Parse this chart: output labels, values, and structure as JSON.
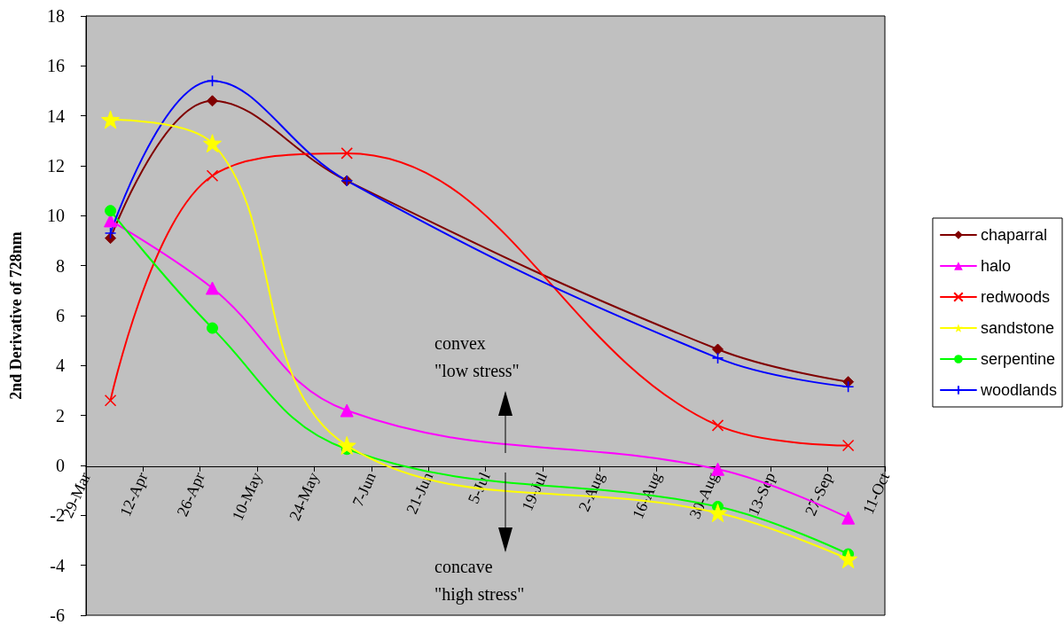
{
  "chart_data": {
    "type": "line",
    "ylabel": "2nd Derivative of 728nm",
    "x": [
      "--04-04",
      "--04-29",
      "--06-01",
      "--08-31",
      "--10-02"
    ],
    "series": [
      {
        "name": "chaparral",
        "color": "#800000",
        "marker": "diamond",
        "values": [
          9.1,
          14.6,
          11.4,
          4.65,
          3.35
        ]
      },
      {
        "name": "halo",
        "color": "#ff00ff",
        "marker": "triangle",
        "values": [
          9.8,
          7.1,
          2.2,
          -0.15,
          -2.1
        ]
      },
      {
        "name": "redwoods",
        "color": "#ff0000",
        "marker": "x",
        "values": [
          2.6,
          11.6,
          12.5,
          1.6,
          0.8
        ]
      },
      {
        "name": "sandstone",
        "color": "#ffff00",
        "marker": "star",
        "values": [
          13.85,
          12.9,
          0.8,
          -1.9,
          -3.75
        ]
      },
      {
        "name": "serpentine",
        "color": "#00ff00",
        "marker": "circle",
        "values": [
          10.2,
          5.5,
          0.65,
          -1.65,
          -3.55
        ]
      },
      {
        "name": "woodlands",
        "color": "#0000ff",
        "marker": "cross",
        "values": [
          9.3,
          15.4,
          11.4,
          4.3,
          3.15
        ]
      }
    ],
    "xlim": [
      "--03-29",
      "--10-11"
    ],
    "xticks": [
      {
        "value": "--03-29",
        "label": "29-Mar"
      },
      {
        "value": "--04-12",
        "label": "12-Apr"
      },
      {
        "value": "--04-26",
        "label": "26-Apr"
      },
      {
        "value": "--05-10",
        "label": "10-May"
      },
      {
        "value": "--05-24",
        "label": "24-May"
      },
      {
        "value": "--06-07",
        "label": "7-Jun"
      },
      {
        "value": "--06-21",
        "label": "21-Jun"
      },
      {
        "value": "--07-05",
        "label": "5-Jul"
      },
      {
        "value": "--07-19",
        "label": "19-Jul"
      },
      {
        "value": "--08-02",
        "label": "2-Aug"
      },
      {
        "value": "--08-16",
        "label": "16-Aug"
      },
      {
        "value": "--08-30",
        "label": "30-Aug"
      },
      {
        "value": "--09-13",
        "label": "13-Sep"
      },
      {
        "value": "--09-27",
        "label": "27-Sep"
      },
      {
        "value": "--10-11",
        "label": "11-Oct"
      }
    ],
    "ylim": [
      -6,
      18
    ],
    "yticks": [
      -6,
      -4,
      -2,
      0,
      2,
      4,
      6,
      8,
      10,
      12,
      14,
      16,
      18
    ],
    "grid": false,
    "legend": "right",
    "annotations": [
      "convex\n\"low stress\"",
      "concave\n\"high stress\""
    ]
  }
}
